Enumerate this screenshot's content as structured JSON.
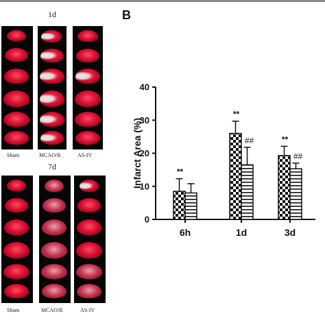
{
  "panel_a": {
    "top_label": "1d",
    "bottom_label": "7d",
    "top_groups": [
      "Sham",
      "MCAO/R",
      "AS-IV"
    ],
    "bottom_groups": [
      "Sham",
      "MCAO/R",
      "AS-IV"
    ]
  },
  "panel_b_letter": "B",
  "chart_data": {
    "type": "bar",
    "ylabel": "Infarct Area (%)",
    "xlabel": "",
    "ylim": [
      0,
      40
    ],
    "yticks": [
      0,
      10,
      20,
      30,
      40
    ],
    "categories": [
      "6h",
      "1d",
      "3d"
    ],
    "series": [
      {
        "pattern": "checkerboard",
        "values": [
          8.5,
          26,
          19.3
        ],
        "errors": [
          3.8,
          3.7,
          2.8
        ],
        "marks": [
          "**",
          "**",
          "**"
        ]
      },
      {
        "pattern": "horizontal-stripes",
        "values": [
          8,
          16.5,
          15.3
        ],
        "errors": [
          2.8,
          5.3,
          1.7
        ],
        "marks": [
          "",
          "##",
          "##"
        ]
      }
    ],
    "grid": false,
    "legend": "none"
  }
}
